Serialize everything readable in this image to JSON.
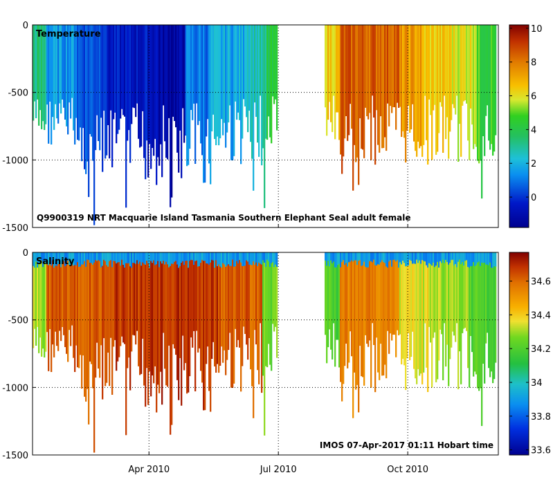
{
  "chart_data": [
    {
      "type": "heatmap",
      "title": "Temperature",
      "annotation": "Q9900319 NRT Macquarie Island Tasmania Southern Elephant Seal adult female",
      "ylabel": "",
      "ylim": [
        -1500,
        0
      ],
      "yticks": [
        0,
        -500,
        -1000,
        -1500
      ],
      "ytick_labels": [
        "0",
        "-500",
        "-1000",
        "-1500"
      ],
      "xlim_months": [
        0.3,
        11.1
      ],
      "x_gap_months": [
        5.95,
        7.05
      ],
      "colorbar": {
        "min": -1.8,
        "max": 10.2,
        "ticks": [
          0,
          2,
          4,
          6,
          8,
          10
        ],
        "tick_labels": [
          "0",
          "2",
          "4",
          "6",
          "8",
          "10"
        ]
      },
      "segments": [
        {
          "start": 0.3,
          "end": 0.6,
          "value": 3.2
        },
        {
          "start": 0.6,
          "end": 1.3,
          "value": 1.5
        },
        {
          "start": 1.3,
          "end": 2.0,
          "value": 0.6
        },
        {
          "start": 2.0,
          "end": 3.2,
          "value": -0.6
        },
        {
          "start": 3.2,
          "end": 3.8,
          "value": -1.3
        },
        {
          "start": 3.8,
          "end": 4.4,
          "value": 1.0
        },
        {
          "start": 4.4,
          "end": 5.2,
          "value": 1.8
        },
        {
          "start": 5.2,
          "end": 5.7,
          "value": 2.7
        },
        {
          "start": 5.7,
          "end": 5.95,
          "value": 4.0
        },
        {
          "start": 7.05,
          "end": 7.4,
          "value": 6.5
        },
        {
          "start": 7.4,
          "end": 8.8,
          "value": 8.5
        },
        {
          "start": 8.8,
          "end": 9.3,
          "value": 7.3
        },
        {
          "start": 9.3,
          "end": 10.0,
          "value": 6.4
        },
        {
          "start": 10.0,
          "end": 10.6,
          "value": 6.0
        },
        {
          "start": 10.6,
          "end": 11.05,
          "value": 4.6
        }
      ]
    },
    {
      "type": "heatmap",
      "title": "Salinity",
      "annotation": "IMOS 07-Apr-2017 01:11 Hobart time",
      "ylabel": "",
      "ylim": [
        -1500,
        0
      ],
      "yticks": [
        0,
        -500,
        -1000,
        -1500
      ],
      "ytick_labels": [
        "0",
        "-500",
        "-1000",
        "-1500"
      ],
      "xticks_months": [
        3,
        6,
        9
      ],
      "xtick_labels": [
        "Apr 2010",
        "Jul 2010",
        "Oct 2010"
      ],
      "xlim_months": [
        0.3,
        11.1
      ],
      "x_gap_months": [
        5.95,
        7.05
      ],
      "colorbar": {
        "min": 33.57,
        "max": 34.77,
        "ticks": [
          33.6,
          33.8,
          34,
          34.2,
          34.4,
          34.6
        ],
        "tick_labels": [
          "33.6",
          "33.8",
          "34",
          "34.2",
          "34.4",
          "34.6"
        ]
      },
      "segments": [
        {
          "start": 0.3,
          "end": 0.6,
          "value": 34.3
        },
        {
          "start": 0.6,
          "end": 2.0,
          "value": 34.62
        },
        {
          "start": 2.0,
          "end": 4.6,
          "value": 34.68
        },
        {
          "start": 4.6,
          "end": 5.6,
          "value": 34.62
        },
        {
          "start": 5.6,
          "end": 5.95,
          "value": 34.25
        },
        {
          "start": 7.05,
          "end": 7.4,
          "value": 34.2
        },
        {
          "start": 7.4,
          "end": 8.8,
          "value": 34.55
        },
        {
          "start": 8.8,
          "end": 9.6,
          "value": 34.35
        },
        {
          "start": 9.6,
          "end": 10.4,
          "value": 34.3
        },
        {
          "start": 10.4,
          "end": 11.05,
          "value": 34.2
        }
      ],
      "surface_value": 33.9
    }
  ],
  "colors": {
    "axis": "#000000",
    "grid": "#000000",
    "background": "#ffffff"
  }
}
